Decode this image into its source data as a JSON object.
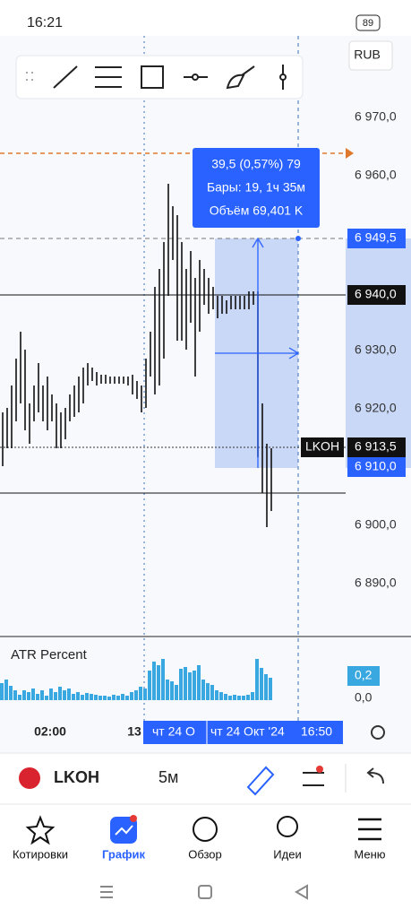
{
  "status": {
    "time": "16:21",
    "battery": "89"
  },
  "toolbar": {
    "currency": "RUB"
  },
  "price_axis": [
    "6 970,0",
    "6 960,0",
    "6 930,0",
    "6 920,0",
    "6 900,0",
    "6 890,0"
  ],
  "measure": {
    "change": "39,5 (0,57%) 79",
    "bars": "Бары: 19, 1ч 35м",
    "volume": "Объём 69,401 K"
  },
  "tags": {
    "cursor_price": "6 949,5",
    "line_price": "6 940,0",
    "ticker": "LKOH",
    "last_price": "6 913,5",
    "range_low": "6 910,0"
  },
  "indicator": {
    "name": "ATR Percent",
    "value": "0,2",
    "zero": "0,0"
  },
  "time_axis": {
    "labels": [
      "02:00",
      "13"
    ],
    "cursor_start": "чт 24 О",
    "cursor_date": "чт 24 Окт '24",
    "cursor_time": "16:50"
  },
  "instrument": {
    "ticker": "LKOH",
    "interval": "5м"
  },
  "nav": [
    "Котировки",
    "График",
    "Обзор",
    "Идеи",
    "Меню"
  ]
}
